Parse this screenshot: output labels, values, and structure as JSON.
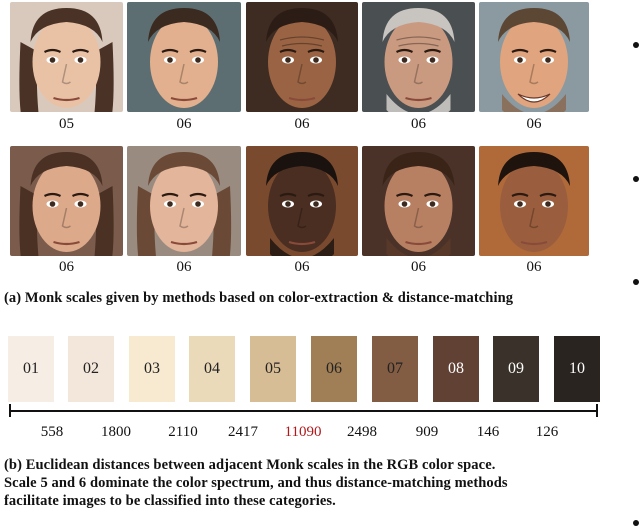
{
  "faces_row1": [
    {
      "label": "05",
      "skin": "#e9c2a6",
      "hair": "#4a3326",
      "bg": "#d9c9bd",
      "age": "young-female",
      "beard": ""
    },
    {
      "label": "06",
      "skin": "#e2b08e",
      "hair": "#3a2a20",
      "bg": "#5d6e72",
      "age": "young-male",
      "beard": ""
    },
    {
      "label": "06",
      "skin": "#9a6444",
      "hair": "#2b1d16",
      "bg": "#3e2c22",
      "age": "old-male",
      "beard": ""
    },
    {
      "label": "06",
      "skin": "#c99a80",
      "hair": "#c8c4bf",
      "bg": "#4a4f52",
      "age": "old-male",
      "beard": "#d3d0cc"
    },
    {
      "label": "06",
      "skin": "#e0a47e",
      "hair": "#5c4634",
      "bg": "#8a9aa0",
      "age": "smile-male",
      "beard": "#8a6a52"
    }
  ],
  "faces_row2": [
    {
      "label": "06",
      "skin": "#dca98b",
      "hair": "#4a3123",
      "bg": "#7b5c4c",
      "age": "young-female",
      "beard": ""
    },
    {
      "label": "06",
      "skin": "#e3b59a",
      "hair": "#6a4a36",
      "bg": "#9a8b80",
      "age": "young-female",
      "beard": ""
    },
    {
      "label": "06",
      "skin": "#4a2e22",
      "hair": "#1a120e",
      "bg": "#7a4a2e",
      "age": "young-male",
      "beard": "#1e1510"
    },
    {
      "label": "06",
      "skin": "#b88063",
      "hair": "#3a2418",
      "bg": "#4a3228",
      "age": "young-male",
      "beard": "#5a3a28"
    },
    {
      "label": "06",
      "skin": "#9a5e3e",
      "hair": "#1e130d",
      "bg": "#b06a3a",
      "age": "young-male",
      "beard": ""
    }
  ],
  "caption_a": "(a) Monk scales given by methods based on color-extraction & distance-matching",
  "swatches": [
    {
      "label": "01",
      "color": "#f6ede4",
      "text": "#222"
    },
    {
      "label": "02",
      "color": "#f3e7db",
      "text": "#222"
    },
    {
      "label": "03",
      "color": "#f7ead0",
      "text": "#222"
    },
    {
      "label": "04",
      "color": "#eadaba",
      "text": "#222"
    },
    {
      "label": "05",
      "color": "#d7bd96",
      "text": "#222"
    },
    {
      "label": "06",
      "color": "#a07e56",
      "text": "#222"
    },
    {
      "label": "07",
      "color": "#825c43",
      "text": "#222"
    },
    {
      "label": "08",
      "color": "#604134",
      "text": "#ffffff"
    },
    {
      "label": "09",
      "color": "#3a312a",
      "text": "#ffffff"
    },
    {
      "label": "10",
      "color": "#292420",
      "text": "#ffffff"
    }
  ],
  "distances": [
    {
      "value": "558",
      "color": "#111111"
    },
    {
      "value": "1800",
      "color": "#111111"
    },
    {
      "value": "2110",
      "color": "#111111"
    },
    {
      "value": "2417",
      "color": "#111111"
    },
    {
      "value": "11090",
      "color": "#b0181a"
    },
    {
      "value": "2498",
      "color": "#111111"
    },
    {
      "value": "909",
      "color": "#111111"
    },
    {
      "value": "146",
      "color": "#111111"
    },
    {
      "value": "126",
      "color": "#111111"
    }
  ],
  "caption_b": [
    "(b) Euclidean distances between adjacent Monk scales in the RGB color space.",
    "Scale 5 and 6 dominate the color spectrum, and thus distance-matching methods",
    "facilitate images to be classified into these categories."
  ]
}
